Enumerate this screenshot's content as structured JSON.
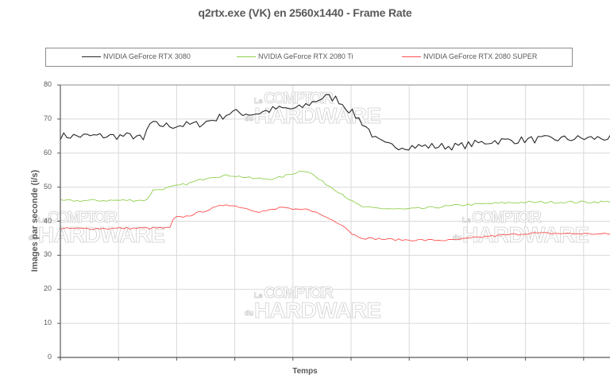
{
  "chart_data": {
    "type": "line",
    "title": "q2rtx.exe (VK) en 2560x1440 - Frame Rate",
    "xlabel": "Temps",
    "ylabel": "Images par seconde (i/s)",
    "ylim": [
      0,
      80
    ],
    "yticks": [
      0,
      10,
      20,
      30,
      40,
      50,
      60,
      70,
      80
    ],
    "grid": true,
    "legend_position": "top",
    "x_description": "time samples (unlabeled), normalized 0-100 across visible plot width",
    "series": [
      {
        "name": "NVIDIA GeForce RTX 3080",
        "color": "#262626",
        "noise": 1.1,
        "points": [
          [
            0,
            65
          ],
          [
            14,
            65
          ],
          [
            15,
            63.5
          ],
          [
            16,
            68.5
          ],
          [
            20,
            68
          ],
          [
            25,
            68.5
          ],
          [
            28,
            70
          ],
          [
            31,
            72
          ],
          [
            35,
            71.5
          ],
          [
            39,
            73
          ],
          [
            43,
            73
          ],
          [
            45,
            74.5
          ],
          [
            47,
            76
          ],
          [
            48,
            76.5
          ],
          [
            50,
            76
          ],
          [
            52,
            73
          ],
          [
            54,
            70
          ],
          [
            56,
            66.5
          ],
          [
            57,
            64
          ],
          [
            59,
            62.2
          ],
          [
            62,
            62
          ],
          [
            72,
            62
          ],
          [
            78,
            63.5
          ],
          [
            86,
            64
          ],
          [
            100,
            64.5
          ]
        ]
      },
      {
        "name": "NVIDIA GeForce RTX 2080 Ti",
        "color": "#92d050",
        "noise": 0.35,
        "points": [
          [
            0,
            46
          ],
          [
            16,
            46.2
          ],
          [
            16.5,
            50
          ],
          [
            17,
            49
          ],
          [
            23,
            51
          ],
          [
            27,
            53
          ],
          [
            31,
            53.5
          ],
          [
            35,
            52.5
          ],
          [
            39,
            52.5
          ],
          [
            42,
            54
          ],
          [
            44,
            55
          ],
          [
            45,
            54.5
          ],
          [
            47,
            52
          ],
          [
            49,
            50
          ],
          [
            51,
            48
          ],
          [
            53,
            45.5
          ],
          [
            55,
            44
          ],
          [
            62,
            43.5
          ],
          [
            66,
            43.8
          ],
          [
            72,
            44.7
          ],
          [
            82,
            45.5
          ],
          [
            100,
            45.7
          ]
        ]
      },
      {
        "name": "NVIDIA GeForce RTX 2080 SUPER",
        "color": "#ff5050",
        "noise": 0.3,
        "points": [
          [
            0,
            37.8
          ],
          [
            20,
            38
          ],
          [
            20.5,
            41
          ],
          [
            23,
            41.5
          ],
          [
            27,
            43.5
          ],
          [
            30,
            45
          ],
          [
            33,
            44
          ],
          [
            36,
            42.8
          ],
          [
            39,
            43.5
          ],
          [
            40,
            44.3
          ],
          [
            42,
            43.3
          ],
          [
            45,
            43.5
          ],
          [
            47,
            42
          ],
          [
            49,
            40.5
          ],
          [
            51,
            39
          ],
          [
            53,
            36
          ],
          [
            55,
            35
          ],
          [
            62,
            34.5
          ],
          [
            71,
            34.4
          ],
          [
            77,
            35.5
          ],
          [
            85,
            36.5
          ],
          [
            100,
            36.2
          ]
        ]
      }
    ]
  },
  "watermark": {
    "line1_prefix": "Le",
    "line1": "COMPTOIR",
    "line2_prefix": "du",
    "line2": "HARDWARE"
  }
}
